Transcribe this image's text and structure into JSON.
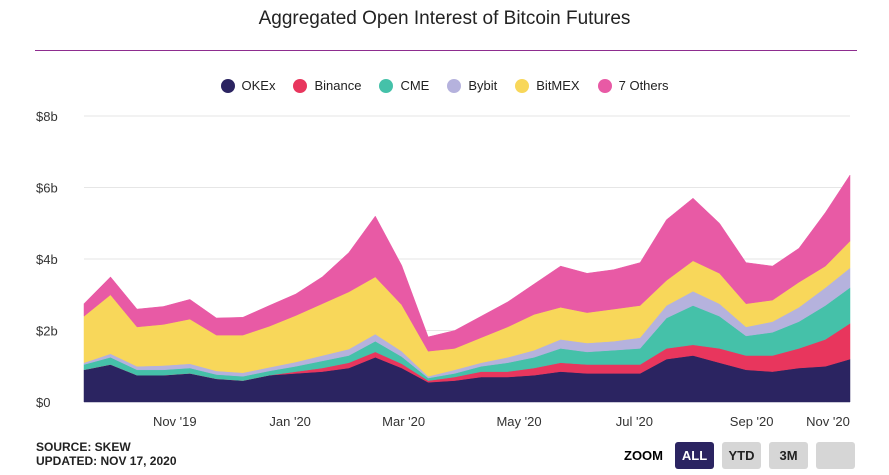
{
  "chart_data": {
    "type": "area",
    "stacked": true,
    "title": "Aggregated Open Interest of Bitcoin Futures",
    "xlabel": "",
    "ylabel": "",
    "ylim": [
      0,
      8
    ],
    "y_ticks": [
      {
        "value": 0,
        "label": "$0"
      },
      {
        "value": 2,
        "label": "$2b"
      },
      {
        "value": 4,
        "label": "$4b"
      },
      {
        "value": 6,
        "label": "$6b"
      },
      {
        "value": 8,
        "label": "$8b"
      }
    ],
    "x_ticks": [
      {
        "date": "2019-11-01",
        "label": "Nov '19"
      },
      {
        "date": "2020-01-01",
        "label": "Jan '20"
      },
      {
        "date": "2020-03-01",
        "label": "Mar '20"
      },
      {
        "date": "2020-05-01",
        "label": "May '20"
      },
      {
        "date": "2020-07-01",
        "label": "Jul '20"
      },
      {
        "date": "2020-09-01",
        "label": "Sep '20"
      },
      {
        "date": "2020-11-01",
        "label": "Nov '20"
      }
    ],
    "grid": true,
    "legend_position": "top",
    "x": [
      "2019-09-14",
      "2019-09-28",
      "2019-10-12",
      "2019-10-26",
      "2019-11-09",
      "2019-11-23",
      "2019-12-07",
      "2019-12-21",
      "2020-01-04",
      "2020-01-18",
      "2020-02-01",
      "2020-02-15",
      "2020-02-29",
      "2020-03-14",
      "2020-03-28",
      "2020-04-11",
      "2020-04-25",
      "2020-05-09",
      "2020-05-23",
      "2020-06-06",
      "2020-06-20",
      "2020-07-04",
      "2020-07-18",
      "2020-08-01",
      "2020-08-15",
      "2020-08-29",
      "2020-09-12",
      "2020-09-26",
      "2020-10-10",
      "2020-10-23"
    ],
    "series": [
      {
        "name": "OKEx",
        "color": "#2b2461",
        "values": [
          0.9,
          1.05,
          0.75,
          0.75,
          0.8,
          0.65,
          0.6,
          0.75,
          0.8,
          0.85,
          0.95,
          1.25,
          0.95,
          0.55,
          0.6,
          0.7,
          0.7,
          0.75,
          0.85,
          0.8,
          0.8,
          0.8,
          1.2,
          1.3,
          1.1,
          0.9,
          0.85,
          0.95,
          1.0,
          1.2
        ]
      },
      {
        "name": "Binance",
        "color": "#e8365d",
        "values": [
          0,
          0,
          0,
          0,
          0,
          0,
          0,
          0,
          0.05,
          0.1,
          0.15,
          0.15,
          0.12,
          0.05,
          0.1,
          0.15,
          0.15,
          0.2,
          0.25,
          0.25,
          0.25,
          0.25,
          0.3,
          0.3,
          0.4,
          0.4,
          0.45,
          0.55,
          0.75,
          1.0
        ]
      },
      {
        "name": "CME",
        "color": "#45c1a9",
        "values": [
          0.15,
          0.2,
          0.15,
          0.15,
          0.15,
          0.12,
          0.12,
          0.12,
          0.15,
          0.2,
          0.2,
          0.3,
          0.2,
          0.07,
          0.1,
          0.15,
          0.25,
          0.3,
          0.4,
          0.35,
          0.4,
          0.45,
          0.85,
          1.1,
          0.9,
          0.55,
          0.65,
          0.75,
          0.95,
          1.0
        ]
      },
      {
        "name": "Bybit",
        "color": "#b5b2dd",
        "values": [
          0.05,
          0.1,
          0.1,
          0.12,
          0.12,
          0.1,
          0.1,
          0.1,
          0.12,
          0.15,
          0.18,
          0.2,
          0.15,
          0.05,
          0.1,
          0.1,
          0.15,
          0.2,
          0.25,
          0.25,
          0.25,
          0.3,
          0.35,
          0.4,
          0.35,
          0.25,
          0.3,
          0.4,
          0.5,
          0.55
        ]
      },
      {
        "name": "BitMEX",
        "color": "#f8d75a",
        "values": [
          1.3,
          1.65,
          1.1,
          1.15,
          1.25,
          1.0,
          1.05,
          1.15,
          1.3,
          1.45,
          1.6,
          1.6,
          1.3,
          0.7,
          0.6,
          0.7,
          0.85,
          1.0,
          0.9,
          0.85,
          0.9,
          0.9,
          0.7,
          0.85,
          0.85,
          0.65,
          0.6,
          0.7,
          0.6,
          0.75
        ]
      },
      {
        "name": "7 Others",
        "color": "#e85aa5",
        "values": [
          0.35,
          0.5,
          0.5,
          0.5,
          0.55,
          0.48,
          0.5,
          0.58,
          0.6,
          0.75,
          1.1,
          1.7,
          1.1,
          0.4,
          0.5,
          0.6,
          0.7,
          0.85,
          1.15,
          1.1,
          1.1,
          1.2,
          1.7,
          1.75,
          1.4,
          1.15,
          0.95,
          0.95,
          1.5,
          1.85
        ]
      }
    ]
  },
  "footer": {
    "source": "SOURCE: SKEW",
    "updated": "UPDATED: NOV 17, 2020"
  },
  "zoom": {
    "label": "ZOOM",
    "buttons": [
      "ALL",
      "YTD",
      "3M",
      ""
    ],
    "active": "ALL"
  }
}
